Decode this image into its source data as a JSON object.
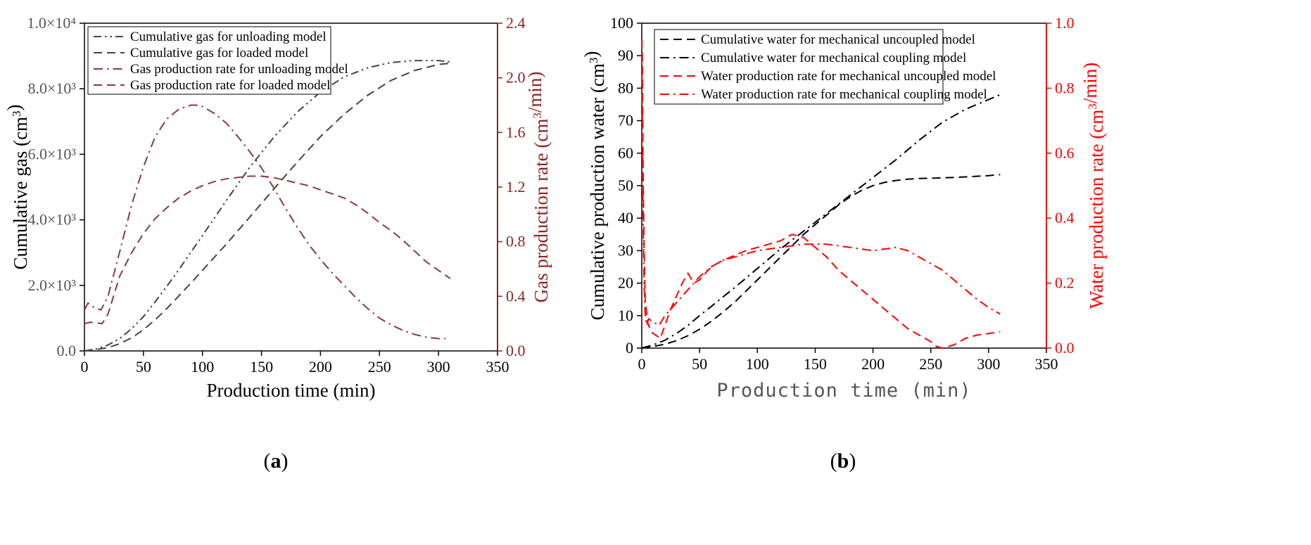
{
  "chart_data": [
    {
      "type": "line",
      "panel_label": "(a)",
      "xlabel": "Production time (min)",
      "ylabel_left": "Cumulative gas (cm3)",
      "ylabel_right": "Gas production rate (cm3/min)",
      "xlim": [
        0,
        350
      ],
      "ylim_left": [
        0,
        10000
      ],
      "ylim_right": [
        0,
        2.4
      ],
      "xticks": [
        "0",
        "50",
        "100",
        "150",
        "200",
        "250",
        "300",
        "350"
      ],
      "yticks_left": [
        "0.0",
        "2.0×10³",
        "4.0×10³",
        "6.0×10³",
        "8.0×10³",
        "1.0×10⁴"
      ],
      "yticks_right": [
        "0.0",
        "0.4",
        "0.8",
        "1.2",
        "1.6",
        "2.0",
        "2.4"
      ],
      "colors": {
        "axis": "#000000",
        "right_axis": "#8b2323",
        "cumulative": "#444444",
        "rate": "#8b3a3a"
      },
      "series": [
        {
          "name": "Cumulative gas for unloading model",
          "axis": "left",
          "style": "dashdotdot",
          "x": [
            0,
            10,
            20,
            30,
            40,
            50,
            60,
            70,
            80,
            90,
            100,
            120,
            140,
            160,
            180,
            200,
            220,
            240,
            260,
            280,
            300,
            310
          ],
          "values": [
            0,
            60,
            180,
            380,
            680,
            1050,
            1500,
            1980,
            2480,
            3000,
            3520,
            4580,
            5600,
            6500,
            7280,
            7900,
            8360,
            8640,
            8800,
            8860,
            8860,
            8820
          ]
        },
        {
          "name": "Cumulative gas for loaded model",
          "axis": "left",
          "style": "dash",
          "x": [
            0,
            10,
            20,
            30,
            40,
            50,
            60,
            70,
            80,
            90,
            100,
            120,
            140,
            160,
            180,
            200,
            220,
            240,
            260,
            280,
            300,
            310
          ],
          "values": [
            0,
            40,
            100,
            220,
            400,
            650,
            950,
            1300,
            1680,
            2060,
            2460,
            3250,
            4080,
            4920,
            5750,
            6540,
            7220,
            7800,
            8260,
            8560,
            8740,
            8780
          ]
        },
        {
          "name": "Gas production rate for unloading model",
          "axis": "right",
          "style": "dashdot",
          "x": [
            0,
            3,
            8,
            14,
            20,
            30,
            40,
            50,
            60,
            70,
            80,
            90,
            95,
            100,
            110,
            120,
            130,
            140,
            150,
            160,
            170,
            180,
            190,
            200,
            210,
            220,
            230,
            240,
            250,
            260,
            270,
            280,
            290,
            300,
            306
          ],
          "values": [
            0.3,
            0.35,
            0.32,
            0.3,
            0.4,
            0.73,
            1.07,
            1.35,
            1.57,
            1.7,
            1.77,
            1.8,
            1.8,
            1.79,
            1.74,
            1.67,
            1.57,
            1.46,
            1.34,
            1.2,
            1.05,
            0.91,
            0.78,
            0.67,
            0.57,
            0.48,
            0.39,
            0.31,
            0.24,
            0.19,
            0.15,
            0.12,
            0.1,
            0.09,
            0.09
          ]
        },
        {
          "name": "Gas production rate for loaded model",
          "axis": "right",
          "style": "dash",
          "x": [
            0,
            5,
            15,
            20,
            30,
            40,
            50,
            60,
            70,
            80,
            90,
            100,
            110,
            120,
            130,
            140,
            150,
            160,
            170,
            180,
            190,
            200,
            210,
            220,
            230,
            240,
            250,
            260,
            270,
            280,
            290,
            300,
            310
          ],
          "values": [
            0.2,
            0.21,
            0.2,
            0.27,
            0.55,
            0.72,
            0.86,
            0.97,
            1.05,
            1.12,
            1.17,
            1.21,
            1.24,
            1.26,
            1.27,
            1.28,
            1.28,
            1.27,
            1.25,
            1.23,
            1.21,
            1.18,
            1.15,
            1.12,
            1.07,
            1.01,
            0.94,
            0.88,
            0.81,
            0.73,
            0.65,
            0.59,
            0.53
          ]
        }
      ]
    },
    {
      "type": "line",
      "panel_label": "(b)",
      "xlabel": "Production time (min)",
      "ylabel_left": "Cumulative production water (cm3)",
      "ylabel_right": "Water production rate (cm3/min)",
      "xlim": [
        0,
        350
      ],
      "ylim_left": [
        0,
        100
      ],
      "ylim_right": [
        0,
        1.0
      ],
      "xticks": [
        "0",
        "50",
        "100",
        "150",
        "200",
        "250",
        "300",
        "350"
      ],
      "yticks_left": [
        "0",
        "10",
        "20",
        "30",
        "40",
        "50",
        "60",
        "70",
        "80",
        "90",
        "100"
      ],
      "yticks_right": [
        "0.0",
        "0.2",
        "0.4",
        "0.6",
        "0.8",
        "1.0"
      ],
      "colors": {
        "axis": "#000000",
        "right_axis": "#ff0000",
        "cumulative": "#000000",
        "rate": "#ff0000"
      },
      "series": [
        {
          "name": "Cumulative water for mechanical uncoupled model",
          "axis": "left",
          "style": "dash",
          "x": [
            0,
            10,
            20,
            30,
            40,
            50,
            60,
            70,
            80,
            90,
            100,
            110,
            120,
            130,
            140,
            150,
            160,
            170,
            180,
            190,
            200,
            210,
            220,
            230,
            240,
            250,
            260,
            270,
            280,
            290,
            300,
            310
          ],
          "values": [
            0,
            0.5,
            1.2,
            2.3,
            3.8,
            5.8,
            8.2,
            11,
            14,
            17.5,
            21,
            24.5,
            28,
            31.5,
            35,
            38,
            41,
            44,
            46.5,
            48.5,
            50,
            51,
            51.6,
            52,
            52.2,
            52.3,
            52.4,
            52.5,
            52.7,
            52.9,
            53.1,
            53.4
          ]
        },
        {
          "name": "Cumulative water for mechanical coupling model",
          "axis": "left",
          "style": "dashdot",
          "x": [
            0,
            10,
            20,
            30,
            40,
            50,
            60,
            70,
            80,
            90,
            100,
            120,
            140,
            160,
            180,
            200,
            220,
            240,
            260,
            280,
            300,
            310
          ],
          "values": [
            0,
            1,
            2.4,
            4.5,
            7,
            10,
            12.8,
            15.7,
            18.5,
            21.5,
            24.5,
            30.5,
            36,
            41.5,
            47,
            52.5,
            58,
            64,
            69.5,
            73.5,
            76.5,
            78
          ]
        },
        {
          "name": "Water production rate for mechanical uncoupled model",
          "axis": "right",
          "style": "dash",
          "x": [
            0,
            0.5,
            1,
            2,
            3,
            5,
            8,
            12,
            16,
            20,
            25,
            30,
            35,
            40,
            45,
            50,
            60,
            70,
            80,
            90,
            100,
            110,
            120,
            125,
            130,
            140,
            150,
            160,
            170,
            180,
            190,
            200,
            210,
            220,
            230,
            240,
            250,
            255,
            260,
            265,
            270,
            280,
            290,
            300,
            310
          ],
          "values": [
            0.95,
            0.9,
            0.6,
            0.3,
            0.15,
            0.08,
            0.05,
            0.04,
            0.03,
            0.07,
            0.12,
            0.16,
            0.2,
            0.23,
            0.2,
            0.21,
            0.25,
            0.27,
            0.285,
            0.3,
            0.31,
            0.32,
            0.33,
            0.34,
            0.35,
            0.34,
            0.31,
            0.28,
            0.24,
            0.21,
            0.18,
            0.15,
            0.12,
            0.09,
            0.06,
            0.04,
            0.02,
            0.005,
            0.0,
            0.005,
            0.01,
            0.03,
            0.04,
            0.045,
            0.05
          ]
        },
        {
          "name": "Water production rate for mechanical coupling model",
          "axis": "right",
          "style": "dashdot",
          "x": [
            0,
            0.5,
            1,
            2,
            3,
            4,
            6,
            10,
            15,
            20,
            25,
            30,
            40,
            50,
            60,
            70,
            80,
            90,
            100,
            110,
            120,
            130,
            140,
            150,
            160,
            170,
            180,
            190,
            200,
            210,
            220,
            230,
            240,
            250,
            260,
            270,
            280,
            290,
            300,
            310
          ],
          "values": [
            0.9,
            0.7,
            0.45,
            0.2,
            0.1,
            0.07,
            0.09,
            0.08,
            0.07,
            0.1,
            0.12,
            0.14,
            0.18,
            0.22,
            0.25,
            0.27,
            0.28,
            0.29,
            0.3,
            0.305,
            0.31,
            0.315,
            0.32,
            0.32,
            0.32,
            0.315,
            0.31,
            0.305,
            0.3,
            0.305,
            0.31,
            0.3,
            0.28,
            0.26,
            0.24,
            0.21,
            0.18,
            0.15,
            0.125,
            0.105
          ]
        }
      ]
    }
  ]
}
